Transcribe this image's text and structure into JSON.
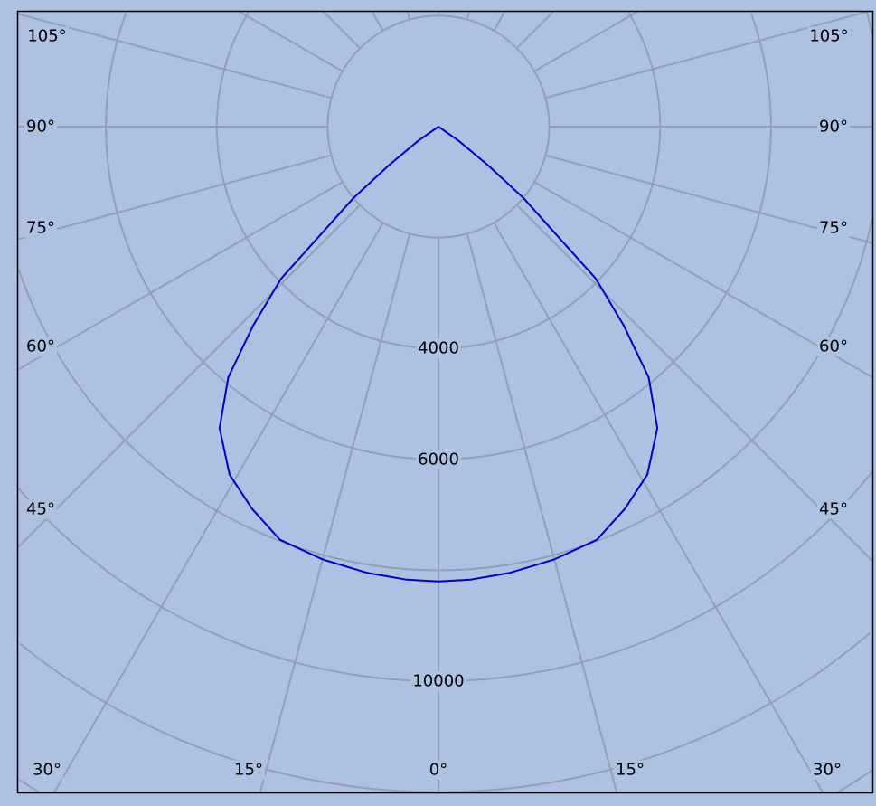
{
  "chart_data": {
    "type": "polar-line",
    "title": "",
    "colors": {
      "background": "#afc1e3",
      "grid": "#949fb5",
      "curve": "#0000c8",
      "frame": "#000000"
    },
    "radial_axis": {
      "min": 0,
      "max": 14000,
      "grid_step": 2000,
      "tick_labels": [
        "4000",
        "6000",
        "10000"
      ],
      "tick_values": [
        4000,
        6000,
        10000
      ]
    },
    "angular_axis": {
      "zero_direction": "down",
      "grid_step_deg": 15,
      "left_labels": [
        "105°",
        "90°",
        "75°",
        "60°",
        "45°",
        "30°",
        "15°",
        "0°"
      ],
      "right_labels": [
        "105°",
        "90°",
        "75°",
        "60°",
        "45°",
        "30°",
        "15°"
      ]
    },
    "series": [
      {
        "symmetric": true,
        "angle_deg": [
          0,
          4,
          9,
          15,
          21,
          26,
          31,
          36,
          40,
          43,
          46,
          50,
          52,
          55,
          58
        ],
        "values": [
          8200,
          8190,
          8150,
          8080,
          7980,
          7670,
          7320,
          6720,
          5900,
          4900,
          3950,
          2000,
          1150,
          450,
          0
        ]
      }
    ],
    "grid": true
  }
}
